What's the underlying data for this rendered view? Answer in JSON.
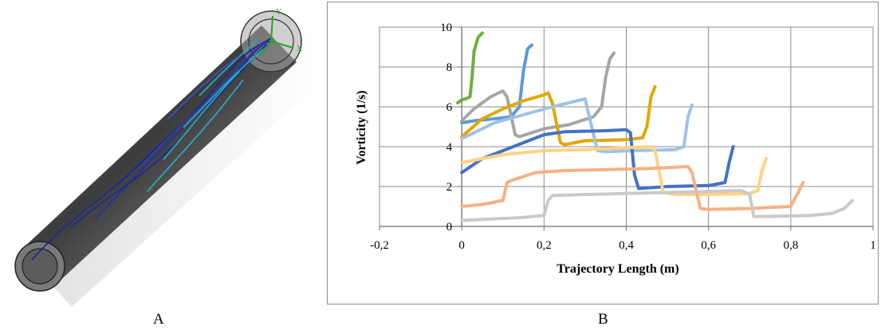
{
  "panel_a": {
    "caption": "A",
    "axis_labels": {
      "x": "X",
      "y": "Y"
    },
    "colors": {
      "pipe_dark": "#4a4a4a",
      "pipe_light": "#d0d0d0",
      "streamline_dark": "#1f2a8c",
      "streamline_light": "#2aa8b8",
      "axis_green": "#2aa02a"
    }
  },
  "panel_b": {
    "caption": "B"
  },
  "chart_data": {
    "type": "line",
    "title": "",
    "xlabel": "Trajectory Length (m)",
    "ylabel": "Vorticity (1/s)",
    "xlim": [
      -0.2,
      1
    ],
    "ylim": [
      0,
      10
    ],
    "xticks": [
      -0.2,
      0,
      0.2,
      0.4,
      0.6,
      0.8,
      1
    ],
    "xtick_labels": [
      "-0,2",
      "0",
      "0,2",
      "0,4",
      "0,6",
      "0,8",
      "1"
    ],
    "yticks": [
      0,
      2,
      4,
      6,
      8,
      10
    ],
    "ytick_labels": [
      "0",
      "2",
      "4",
      "6",
      "8",
      "10"
    ],
    "grid": true,
    "legend": "none",
    "series": [
      {
        "color": "#70ad47",
        "points": [
          [
            -0.01,
            6.2
          ],
          [
            0.0,
            6.35
          ],
          [
            0.01,
            6.4
          ],
          [
            0.02,
            6.5
          ],
          [
            0.025,
            7.5
          ],
          [
            0.03,
            8.8
          ],
          [
            0.04,
            9.5
          ],
          [
            0.05,
            9.7
          ]
        ]
      },
      {
        "color": "#5b9bd5",
        "points": [
          [
            0.0,
            5.2
          ],
          [
            0.03,
            5.3
          ],
          [
            0.08,
            5.4
          ],
          [
            0.12,
            5.5
          ],
          [
            0.14,
            6.0
          ],
          [
            0.15,
            7.8
          ],
          [
            0.16,
            8.9
          ],
          [
            0.17,
            9.1
          ]
        ]
      },
      {
        "color": "#a5a5a5",
        "points": [
          [
            0.0,
            5.3
          ],
          [
            0.03,
            5.9
          ],
          [
            0.07,
            6.5
          ],
          [
            0.1,
            6.8
          ],
          [
            0.11,
            6.5
          ],
          [
            0.13,
            4.6
          ],
          [
            0.14,
            4.5
          ],
          [
            0.2,
            4.9
          ],
          [
            0.26,
            5.1
          ],
          [
            0.32,
            5.5
          ],
          [
            0.34,
            6.0
          ],
          [
            0.35,
            7.5
          ],
          [
            0.36,
            8.4
          ],
          [
            0.37,
            8.7
          ]
        ]
      },
      {
        "color": "#e0a800",
        "points": [
          [
            0.0,
            4.5
          ],
          [
            0.05,
            5.4
          ],
          [
            0.1,
            5.9
          ],
          [
            0.15,
            6.3
          ],
          [
            0.2,
            6.6
          ],
          [
            0.21,
            6.7
          ],
          [
            0.22,
            6.2
          ],
          [
            0.24,
            4.2
          ],
          [
            0.25,
            4.1
          ],
          [
            0.3,
            4.3
          ],
          [
            0.4,
            4.35
          ],
          [
            0.44,
            4.45
          ],
          [
            0.45,
            5.0
          ],
          [
            0.46,
            6.5
          ],
          [
            0.47,
            7.0
          ]
        ]
      },
      {
        "color": "#9dc3e6",
        "points": [
          [
            0.0,
            4.4
          ],
          [
            0.08,
            5.2
          ],
          [
            0.15,
            5.6
          ],
          [
            0.22,
            6.0
          ],
          [
            0.28,
            6.3
          ],
          [
            0.3,
            6.4
          ],
          [
            0.31,
            5.5
          ],
          [
            0.33,
            3.8
          ],
          [
            0.35,
            3.75
          ],
          [
            0.42,
            3.8
          ],
          [
            0.52,
            3.85
          ],
          [
            0.54,
            4.0
          ],
          [
            0.55,
            5.5
          ],
          [
            0.56,
            6.1
          ]
        ]
      },
      {
        "color": "#4472c4",
        "points": [
          [
            0.0,
            2.7
          ],
          [
            0.05,
            3.4
          ],
          [
            0.1,
            3.8
          ],
          [
            0.15,
            4.2
          ],
          [
            0.2,
            4.6
          ],
          [
            0.25,
            4.75
          ],
          [
            0.35,
            4.8
          ],
          [
            0.4,
            4.85
          ],
          [
            0.41,
            4.7
          ],
          [
            0.42,
            2.6
          ],
          [
            0.43,
            1.9
          ],
          [
            0.5,
            2.0
          ],
          [
            0.6,
            2.05
          ],
          [
            0.64,
            2.2
          ],
          [
            0.65,
            3.2
          ],
          [
            0.66,
            4.0
          ]
        ]
      },
      {
        "color": "#ffd285",
        "points": [
          [
            0.0,
            3.2
          ],
          [
            0.1,
            3.6
          ],
          [
            0.2,
            3.8
          ],
          [
            0.3,
            3.85
          ],
          [
            0.4,
            3.95
          ],
          [
            0.46,
            4.0
          ],
          [
            0.47,
            3.8
          ],
          [
            0.49,
            1.7
          ],
          [
            0.52,
            1.6
          ],
          [
            0.6,
            1.6
          ],
          [
            0.7,
            1.65
          ],
          [
            0.72,
            1.8
          ],
          [
            0.73,
            2.8
          ],
          [
            0.74,
            3.4
          ]
        ]
      },
      {
        "color": "#f4b183",
        "points": [
          [
            0.0,
            1.0
          ],
          [
            0.05,
            1.1
          ],
          [
            0.1,
            1.3
          ],
          [
            0.11,
            2.2
          ],
          [
            0.12,
            2.3
          ],
          [
            0.18,
            2.7
          ],
          [
            0.25,
            2.8
          ],
          [
            0.35,
            2.85
          ],
          [
            0.45,
            2.9
          ],
          [
            0.55,
            3.0
          ],
          [
            0.56,
            2.7
          ],
          [
            0.58,
            0.9
          ],
          [
            0.6,
            0.85
          ],
          [
            0.7,
            0.9
          ],
          [
            0.8,
            1.0
          ],
          [
            0.82,
            1.8
          ],
          [
            0.83,
            2.2
          ]
        ]
      },
      {
        "color": "#c9c9c9",
        "points": [
          [
            0.0,
            0.3
          ],
          [
            0.05,
            0.35
          ],
          [
            0.15,
            0.45
          ],
          [
            0.2,
            0.55
          ],
          [
            0.21,
            1.3
          ],
          [
            0.22,
            1.55
          ],
          [
            0.3,
            1.6
          ],
          [
            0.4,
            1.65
          ],
          [
            0.5,
            1.7
          ],
          [
            0.6,
            1.75
          ],
          [
            0.68,
            1.8
          ],
          [
            0.7,
            1.6
          ],
          [
            0.71,
            0.5
          ],
          [
            0.75,
            0.5
          ],
          [
            0.85,
            0.55
          ],
          [
            0.9,
            0.65
          ],
          [
            0.93,
            0.9
          ],
          [
            0.95,
            1.3
          ]
        ]
      }
    ]
  }
}
